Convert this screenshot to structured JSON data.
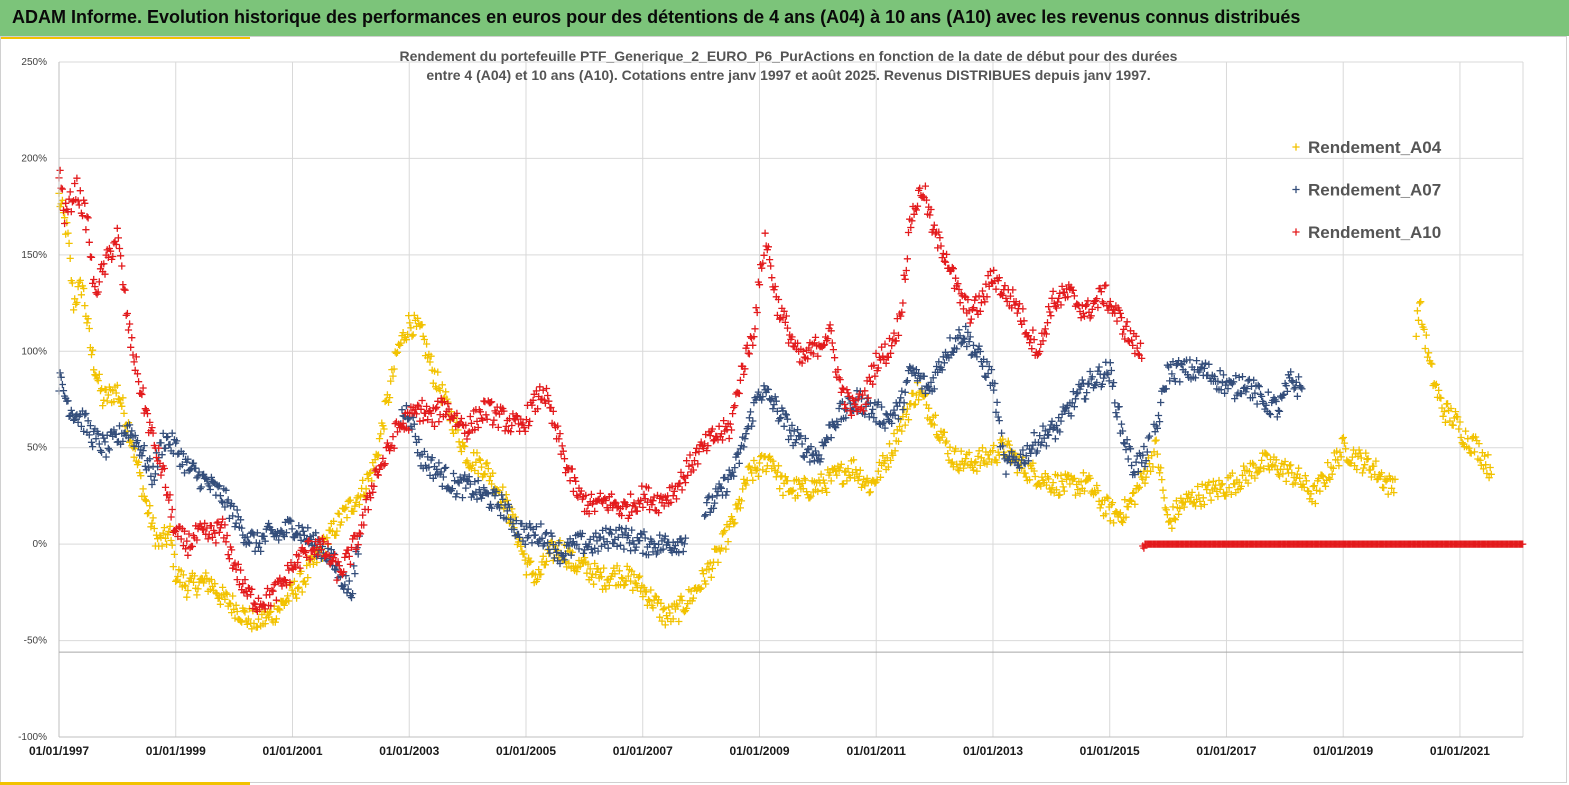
{
  "header": {
    "title": "ADAM Informe. Evolution historique des performances en euros pour des détentions de 4 ans (A04) à 10 ans (A10) avec les revenus connus distribués"
  },
  "colors": {
    "banner": "#7cc47a",
    "accent": "#f2c200",
    "grid": "#d9d9d9",
    "axis_text": "#404040"
  },
  "chart_data": {
    "type": "scatter",
    "title_lines": [
      "Rendement du portefeuille PTF_Generique_2_EURO_P6_PurActions  en fonction de la date de début pour des durées",
      "entre 4 (A04) et 10 ans (A10). Cotations entre janv 1997 et août 2025. Revenus DISTRIBUES depuis janv 1997."
    ],
    "xlabel": "",
    "ylabel": "",
    "marker": "+",
    "grid": true,
    "legend_position": "right",
    "x_range": [
      1997.0,
      2022.08
    ],
    "ylim": [
      -100,
      250
    ],
    "y_ticks": [
      -100,
      -50,
      0,
      50,
      100,
      150,
      200,
      250
    ],
    "y_tick_labels": [
      "-100%",
      "-50%",
      "0%",
      "50%",
      "100%",
      "150%",
      "200%",
      "250%"
    ],
    "x_ticks": [
      1997,
      1999,
      2001,
      2003,
      2005,
      2007,
      2009,
      2011,
      2013,
      2015,
      2017,
      2019,
      2021
    ],
    "x_tick_labels": [
      "01/01/1997",
      "01/01/1999",
      "01/01/2001",
      "01/01/2003",
      "01/01/2005",
      "01/01/2007",
      "01/01/2009",
      "01/01/2011",
      "01/01/2013",
      "01/01/2015",
      "01/01/2017",
      "01/01/2019",
      "01/01/2021"
    ],
    "series": [
      {
        "name": "Rendement_A04",
        "color": "#f2c200",
        "x_start": 1997.0,
        "x_end": 2021.55,
        "gaps": [
          [
            2019.9,
            2020.25
          ]
        ],
        "points": [
          [
            1997.0,
            180
          ],
          [
            1997.15,
            160
          ],
          [
            1997.25,
            125
          ],
          [
            1997.4,
            135
          ],
          [
            1997.55,
            100
          ],
          [
            1997.75,
            75
          ],
          [
            1998.0,
            80
          ],
          [
            1998.2,
            60
          ],
          [
            1998.5,
            20
          ],
          [
            1998.7,
            0
          ],
          [
            1998.9,
            5
          ],
          [
            1999.0,
            -15
          ],
          [
            1999.2,
            -22
          ],
          [
            1999.4,
            -20
          ],
          [
            1999.6,
            -20
          ],
          [
            1999.8,
            -28
          ],
          [
            2000.0,
            -32
          ],
          [
            2000.2,
            -38
          ],
          [
            2000.4,
            -40
          ],
          [
            2000.6,
            -38
          ],
          [
            2000.8,
            -32
          ],
          [
            2001.0,
            -25
          ],
          [
            2001.2,
            -18
          ],
          [
            2001.4,
            -8
          ],
          [
            2001.6,
            2
          ],
          [
            2001.8,
            12
          ],
          [
            2002.0,
            20
          ],
          [
            2002.2,
            28
          ],
          [
            2002.4,
            40
          ],
          [
            2002.6,
            70
          ],
          [
            2002.8,
            100
          ],
          [
            2003.0,
            115
          ],
          [
            2003.2,
            110
          ],
          [
            2003.4,
            90
          ],
          [
            2003.6,
            75
          ],
          [
            2003.8,
            60
          ],
          [
            2004.0,
            45
          ],
          [
            2004.3,
            40
          ],
          [
            2004.6,
            25
          ],
          [
            2004.8,
            10
          ],
          [
            2005.0,
            -10
          ],
          [
            2005.2,
            -18
          ],
          [
            2005.4,
            -5
          ],
          [
            2005.6,
            -2
          ],
          [
            2005.8,
            -10
          ],
          [
            2006.0,
            -12
          ],
          [
            2006.3,
            -18
          ],
          [
            2006.6,
            -15
          ],
          [
            2006.9,
            -20
          ],
          [
            2007.2,
            -30
          ],
          [
            2007.4,
            -38
          ],
          [
            2007.6,
            -35
          ],
          [
            2007.8,
            -28
          ],
          [
            2008.0,
            -20
          ],
          [
            2008.3,
            -5
          ],
          [
            2008.6,
            15
          ],
          [
            2008.8,
            35
          ],
          [
            2009.0,
            40
          ],
          [
            2009.2,
            45
          ],
          [
            2009.4,
            30
          ],
          [
            2009.7,
            28
          ],
          [
            2010.0,
            30
          ],
          [
            2010.3,
            35
          ],
          [
            2010.6,
            40
          ],
          [
            2010.9,
            30
          ],
          [
            2011.2,
            45
          ],
          [
            2011.4,
            60
          ],
          [
            2011.7,
            80
          ],
          [
            2012.0,
            65
          ],
          [
            2012.3,
            45
          ],
          [
            2012.6,
            42
          ],
          [
            2012.9,
            45
          ],
          [
            2013.2,
            50
          ],
          [
            2013.5,
            40
          ],
          [
            2013.8,
            35
          ],
          [
            2014.0,
            32
          ],
          [
            2014.3,
            30
          ],
          [
            2014.6,
            32
          ],
          [
            2014.9,
            20
          ],
          [
            2015.1,
            15
          ],
          [
            2015.3,
            18
          ],
          [
            2015.5,
            30
          ],
          [
            2015.8,
            50
          ],
          [
            2016.0,
            10
          ],
          [
            2016.2,
            20
          ],
          [
            2016.5,
            25
          ],
          [
            2016.8,
            28
          ],
          [
            2017.0,
            30
          ],
          [
            2017.3,
            35
          ],
          [
            2017.6,
            42
          ],
          [
            2017.9,
            40
          ],
          [
            2018.2,
            35
          ],
          [
            2018.5,
            25
          ],
          [
            2018.8,
            40
          ],
          [
            2019.0,
            50
          ],
          [
            2019.2,
            45
          ],
          [
            2019.5,
            40
          ],
          [
            2019.8,
            30
          ],
          [
            2020.0,
            38
          ],
          [
            2020.3,
            125
          ],
          [
            2020.5,
            90
          ],
          [
            2020.7,
            70
          ],
          [
            2020.9,
            65
          ],
          [
            2021.1,
            55
          ],
          [
            2021.3,
            50
          ],
          [
            2021.5,
            40
          ]
        ]
      },
      {
        "name": "Rendement_A07",
        "color": "#334d7a",
        "x_start": 1997.0,
        "x_end": 2018.3,
        "gaps": [
          [
            2002.15,
            2002.85
          ],
          [
            2007.75,
            2008.05
          ],
          [
            2015.7,
            2015.75
          ]
        ],
        "points": [
          [
            1997.0,
            85
          ],
          [
            1997.2,
            70
          ],
          [
            1997.4,
            65
          ],
          [
            1997.6,
            55
          ],
          [
            1997.8,
            50
          ],
          [
            1998.0,
            55
          ],
          [
            1998.2,
            60
          ],
          [
            1998.4,
            50
          ],
          [
            1998.6,
            35
          ],
          [
            1998.8,
            55
          ],
          [
            1999.0,
            50
          ],
          [
            1999.2,
            40
          ],
          [
            1999.4,
            35
          ],
          [
            1999.6,
            30
          ],
          [
            1999.8,
            25
          ],
          [
            2000.0,
            15
          ],
          [
            2000.2,
            5
          ],
          [
            2000.4,
            0
          ],
          [
            2000.6,
            5
          ],
          [
            2000.8,
            5
          ],
          [
            2001.0,
            10
          ],
          [
            2001.2,
            5
          ],
          [
            2001.4,
            0
          ],
          [
            2001.6,
            -5
          ],
          [
            2001.8,
            -15
          ],
          [
            2002.0,
            -25
          ],
          [
            2002.2,
            10
          ],
          [
            2002.4,
            40
          ],
          [
            2002.6,
            50
          ],
          [
            2002.8,
            65
          ],
          [
            2003.0,
            70
          ],
          [
            2003.2,
            45
          ],
          [
            2003.4,
            40
          ],
          [
            2003.6,
            35
          ],
          [
            2003.8,
            30
          ],
          [
            2004.0,
            30
          ],
          [
            2004.3,
            25
          ],
          [
            2004.6,
            20
          ],
          [
            2004.8,
            10
          ],
          [
            2005.0,
            5
          ],
          [
            2005.3,
            5
          ],
          [
            2005.6,
            -5
          ],
          [
            2005.9,
            0
          ],
          [
            2006.2,
            0
          ],
          [
            2006.5,
            5
          ],
          [
            2006.8,
            2
          ],
          [
            2007.1,
            0
          ],
          [
            2007.4,
            0
          ],
          [
            2007.7,
            2
          ],
          [
            2008.0,
            15
          ],
          [
            2008.3,
            25
          ],
          [
            2008.6,
            40
          ],
          [
            2008.8,
            60
          ],
          [
            2009.0,
            80
          ],
          [
            2009.2,
            75
          ],
          [
            2009.4,
            65
          ],
          [
            2009.6,
            55
          ],
          [
            2009.8,
            50
          ],
          [
            2010.0,
            45
          ],
          [
            2010.3,
            65
          ],
          [
            2010.5,
            70
          ],
          [
            2010.7,
            75
          ],
          [
            2010.9,
            70
          ],
          [
            2011.2,
            65
          ],
          [
            2011.4,
            70
          ],
          [
            2011.6,
            90
          ],
          [
            2011.9,
            80
          ],
          [
            2012.2,
            100
          ],
          [
            2012.5,
            110
          ],
          [
            2012.8,
            95
          ],
          [
            2013.0,
            85
          ],
          [
            2013.2,
            40
          ],
          [
            2013.5,
            45
          ],
          [
            2013.8,
            55
          ],
          [
            2014.1,
            60
          ],
          [
            2014.4,
            75
          ],
          [
            2014.7,
            85
          ],
          [
            2015.0,
            90
          ],
          [
            2015.2,
            60
          ],
          [
            2015.4,
            40
          ],
          [
            2015.6,
            45
          ],
          [
            2015.8,
            60
          ],
          [
            2016.0,
            90
          ],
          [
            2016.3,
            90
          ],
          [
            2016.6,
            90
          ],
          [
            2016.9,
            85
          ],
          [
            2017.1,
            80
          ],
          [
            2017.3,
            85
          ],
          [
            2017.6,
            75
          ],
          [
            2017.9,
            70
          ],
          [
            2018.1,
            85
          ],
          [
            2018.3,
            80
          ]
        ]
      },
      {
        "name": "Rendement_A10",
        "color": "#e31a1c",
        "x_start": 1997.0,
        "x_end": 2022.08,
        "gaps": [],
        "points": [
          [
            1997.0,
            195
          ],
          [
            1997.1,
            170
          ],
          [
            1997.3,
            185
          ],
          [
            1997.5,
            165
          ],
          [
            1997.6,
            130
          ],
          [
            1997.8,
            145
          ],
          [
            1998.0,
            160
          ],
          [
            1998.2,
            110
          ],
          [
            1998.4,
            80
          ],
          [
            1998.6,
            55
          ],
          [
            1998.8,
            35
          ],
          [
            1999.0,
            5
          ],
          [
            1999.2,
            0
          ],
          [
            1999.4,
            5
          ],
          [
            1999.6,
            5
          ],
          [
            1999.8,
            8
          ],
          [
            2000.0,
            -10
          ],
          [
            2000.2,
            -25
          ],
          [
            2000.4,
            -30
          ],
          [
            2000.6,
            -28
          ],
          [
            2000.8,
            -22
          ],
          [
            2001.0,
            -12
          ],
          [
            2001.2,
            -5
          ],
          [
            2001.4,
            0
          ],
          [
            2001.6,
            -5
          ],
          [
            2001.8,
            -15
          ],
          [
            2002.0,
            -5
          ],
          [
            2002.2,
            10
          ],
          [
            2002.4,
            35
          ],
          [
            2002.6,
            45
          ],
          [
            2002.8,
            60
          ],
          [
            2003.0,
            65
          ],
          [
            2003.2,
            70
          ],
          [
            2003.4,
            65
          ],
          [
            2003.6,
            72
          ],
          [
            2003.8,
            65
          ],
          [
            2004.0,
            60
          ],
          [
            2004.3,
            70
          ],
          [
            2004.6,
            65
          ],
          [
            2004.9,
            60
          ],
          [
            2005.1,
            70
          ],
          [
            2005.3,
            80
          ],
          [
            2005.5,
            60
          ],
          [
            2005.7,
            40
          ],
          [
            2005.9,
            25
          ],
          [
            2006.1,
            20
          ],
          [
            2006.4,
            22
          ],
          [
            2006.7,
            18
          ],
          [
            2007.0,
            25
          ],
          [
            2007.3,
            22
          ],
          [
            2007.6,
            30
          ],
          [
            2007.9,
            45
          ],
          [
            2008.2,
            55
          ],
          [
            2008.5,
            60
          ],
          [
            2008.7,
            90
          ],
          [
            2008.9,
            110
          ],
          [
            2009.1,
            160
          ],
          [
            2009.3,
            125
          ],
          [
            2009.5,
            110
          ],
          [
            2009.7,
            95
          ],
          [
            2009.9,
            100
          ],
          [
            2010.2,
            110
          ],
          [
            2010.4,
            80
          ],
          [
            2010.6,
            70
          ],
          [
            2010.8,
            75
          ],
          [
            2011.0,
            95
          ],
          [
            2011.2,
            100
          ],
          [
            2011.4,
            115
          ],
          [
            2011.6,
            170
          ],
          [
            2011.8,
            185
          ],
          [
            2012.0,
            160
          ],
          [
            2012.2,
            150
          ],
          [
            2012.4,
            130
          ],
          [
            2012.6,
            120
          ],
          [
            2012.8,
            125
          ],
          [
            2013.0,
            140
          ],
          [
            2013.2,
            130
          ],
          [
            2013.4,
            125
          ],
          [
            2013.6,
            110
          ],
          [
            2013.8,
            100
          ],
          [
            2014.0,
            125
          ],
          [
            2014.3,
            130
          ],
          [
            2014.6,
            120
          ],
          [
            2014.9,
            130
          ],
          [
            2015.1,
            120
          ],
          [
            2015.3,
            110
          ],
          [
            2015.5,
            100
          ],
          [
            2015.6,
            0
          ],
          [
            2016.0,
            0
          ],
          [
            2017.0,
            0
          ],
          [
            2018.0,
            0
          ],
          [
            2019.0,
            0
          ],
          [
            2020.0,
            0
          ],
          [
            2021.0,
            0
          ],
          [
            2022.08,
            0
          ]
        ]
      }
    ]
  }
}
